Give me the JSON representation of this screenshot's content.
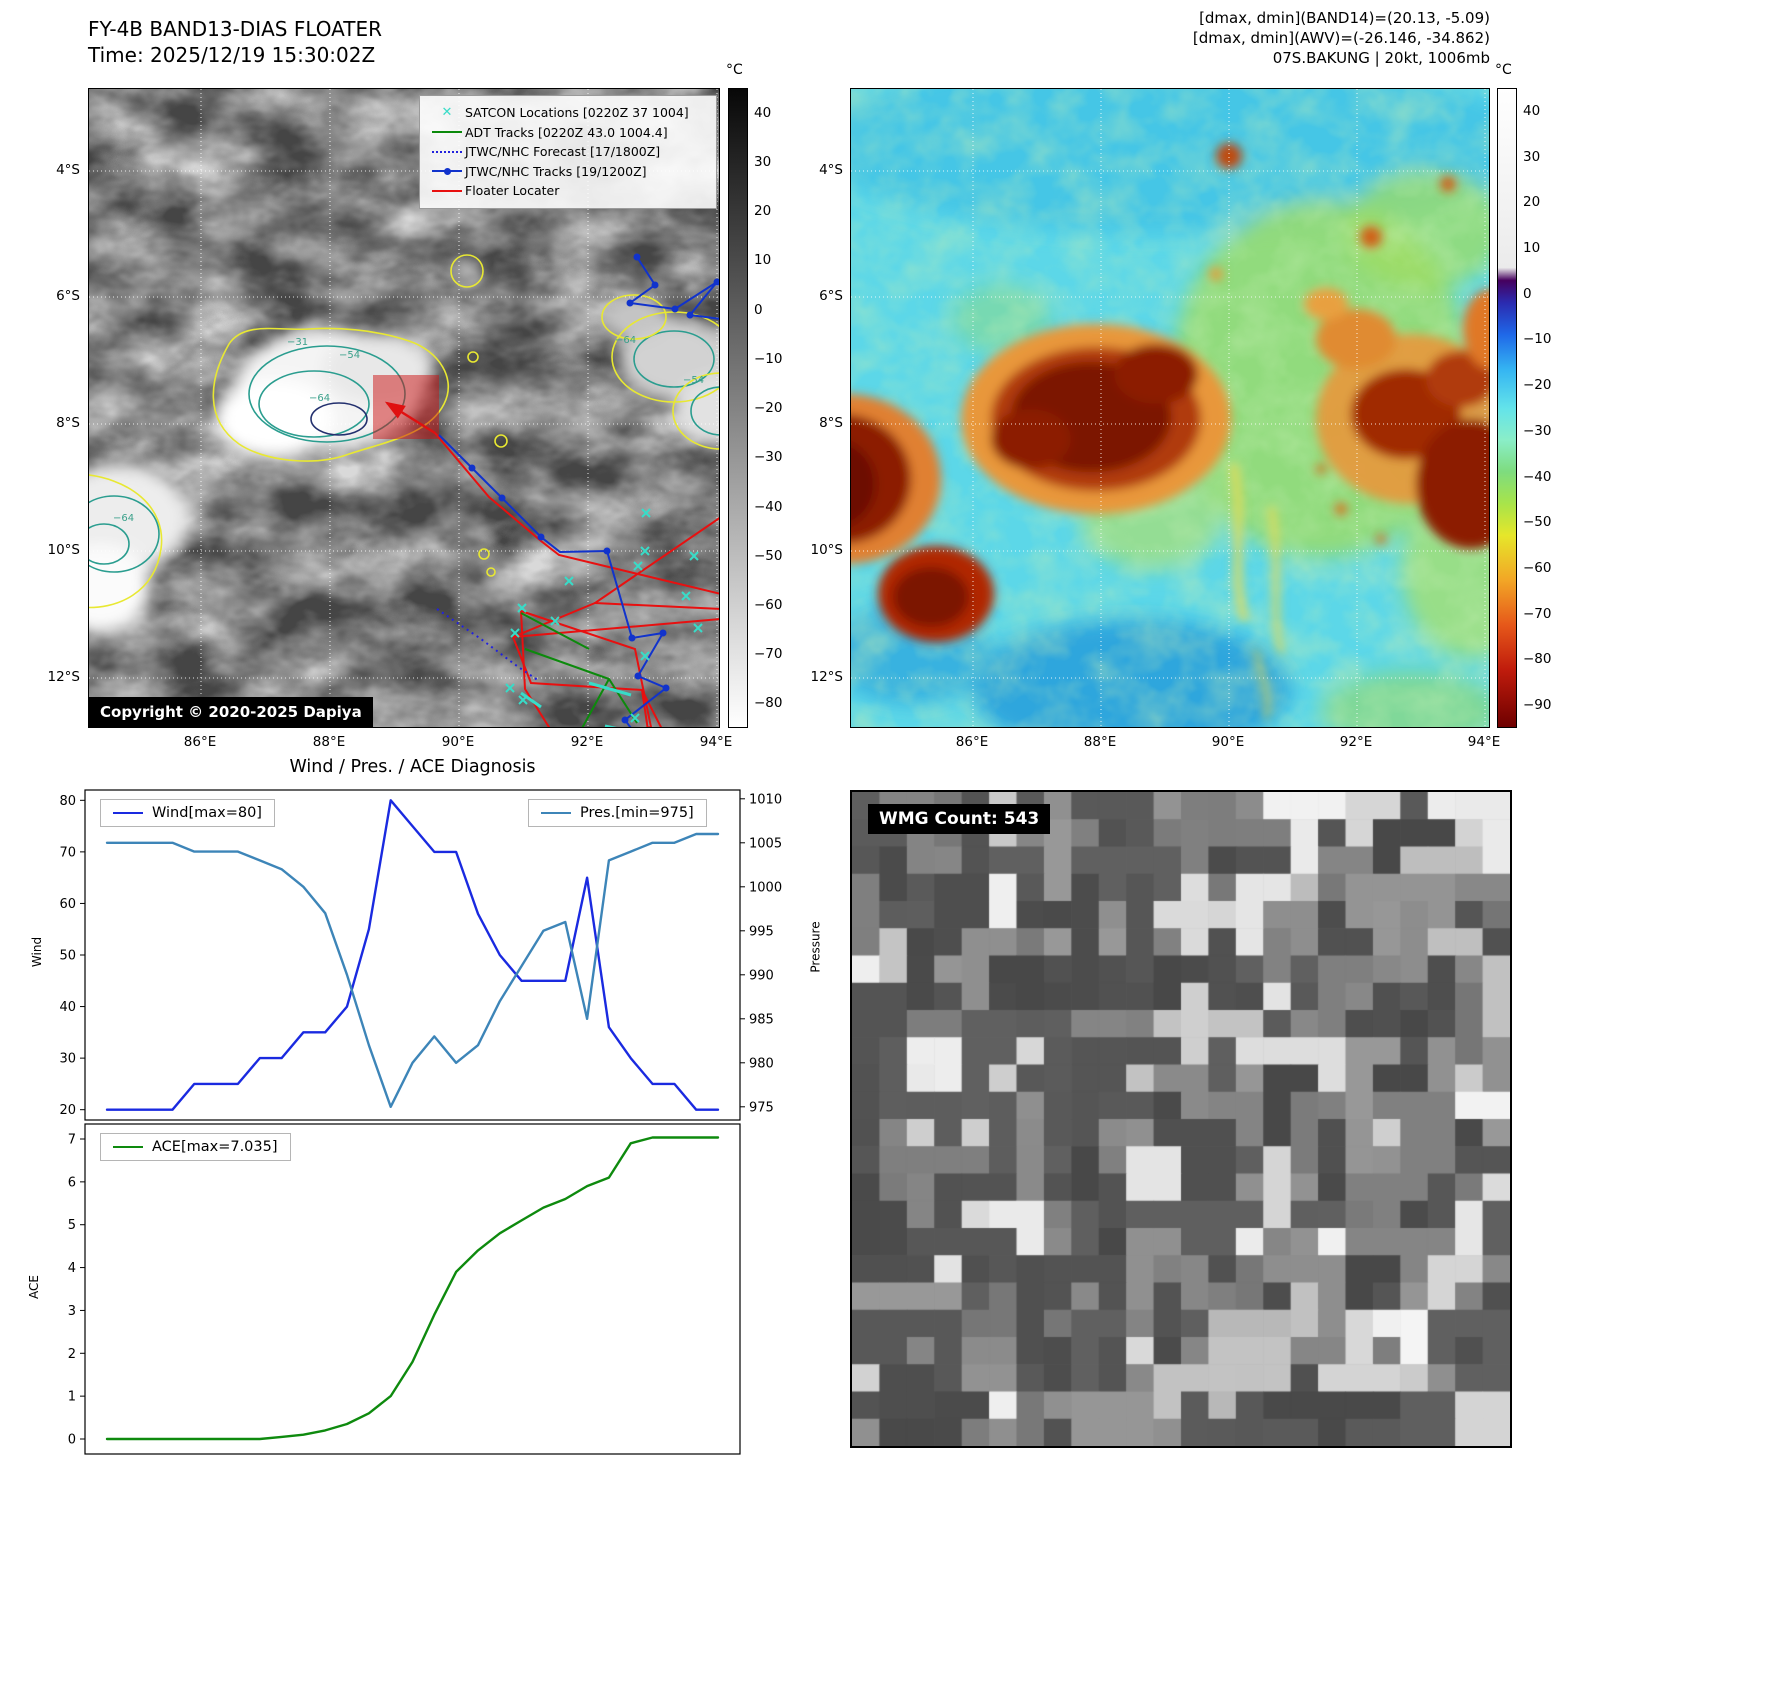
{
  "colors": {
    "wind_line": "#1a2ae0",
    "pressure_line": "#3d85b8",
    "ace_line": "#0e8a0e",
    "track_blue": "#1133cc",
    "floater_red": "#e81010",
    "adt_green": "#0c8a0c",
    "satcon_cyan": "#38dcc8",
    "contour_yellow": "#e8e832",
    "contour_teal": "#2a9d8f"
  },
  "ir_panel": {
    "title": "FY-4B BAND13-DIAS FLOATER",
    "subtitle": "Time: 2025/12/19 15:30:02Z",
    "legend": {
      "satcon": "SATCON Locations [0220Z 37 1004]",
      "adt": "ADT Tracks [0220Z 43.0 1004.4]",
      "forecast": "JTWC/NHC Forecast [17/1800Z]",
      "tracks": "JTWC/NHC Tracks [19/1200Z]",
      "floater": "Floater Locater"
    },
    "copyright": "Copyright © 2020-2025 Dapiya",
    "colorbar_unit": "°C",
    "colorbar_ticks": [
      "40",
      "30",
      "20",
      "10",
      "0",
      "−10",
      "−20",
      "−30",
      "−40",
      "−50",
      "−60",
      "−70",
      "−80"
    ],
    "x_ticks": [
      "86°E",
      "88°E",
      "90°E",
      "92°E",
      "94°E"
    ],
    "y_ticks": [
      "4°S",
      "6°S",
      "8°S",
      "10°S",
      "12°S"
    ],
    "contour_labels": [
      "−31",
      "−54",
      "−64",
      "−64",
      "−54",
      "−64"
    ]
  },
  "awv_panel": {
    "header_line1": "[dmax, dmin](BAND14)=(20.13, -5.09)",
    "header_line2": "[dmax, dmin](AWV)=(-26.146, -34.862)",
    "header_line3": "07S.BAKUNG | 20kt, 1006mb",
    "colorbar_unit": "°C",
    "colorbar_ticks": [
      "40",
      "30",
      "20",
      "10",
      "0",
      "−10",
      "−20",
      "−30",
      "−40",
      "−50",
      "−60",
      "−70",
      "−80",
      "−90"
    ],
    "x_ticks": [
      "86°E",
      "88°E",
      "90°E",
      "92°E",
      "94°E"
    ],
    "y_ticks": [
      "4°S",
      "6°S",
      "8°S",
      "10°S",
      "12°S"
    ]
  },
  "diagnosis": {
    "title": "Wind / Pres. / ACE Diagnosis"
  },
  "wmg_panel": {
    "label": "WMG Count: 543"
  },
  "chart_data": [
    {
      "type": "line",
      "title": "Wind / Pres. / ACE Diagnosis",
      "grid": false,
      "axes": {
        "left": {
          "label": "Wind",
          "min": 18,
          "max": 82,
          "ticks": [
            20,
            30,
            40,
            50,
            60,
            70,
            80
          ]
        },
        "right": {
          "label": "Pressure",
          "min": 973.5,
          "max": 1011,
          "ticks": [
            975,
            980,
            985,
            990,
            995,
            1000,
            1005,
            1010
          ]
        }
      },
      "series": [
        {
          "name": "Wind[max=80]",
          "axis": "left",
          "color": "#1a2ae0",
          "values": [
            20,
            20,
            20,
            20,
            25,
            25,
            25,
            30,
            30,
            35,
            35,
            40,
            55,
            80,
            75,
            70,
            70,
            58,
            50,
            45,
            45,
            45,
            65,
            36,
            30,
            25,
            25,
            20,
            20
          ]
        },
        {
          "name": "Pres.[min=975]",
          "axis": "right",
          "color": "#3d85b8",
          "values": [
            1005,
            1005,
            1005,
            1005,
            1004,
            1004,
            1004,
            1003,
            1002,
            1000,
            997,
            990,
            982,
            975,
            980,
            983,
            980,
            982,
            987,
            991,
            995,
            996,
            985,
            1003,
            1004,
            1005,
            1005,
            1006,
            1006
          ]
        }
      ]
    },
    {
      "type": "line",
      "title": "",
      "grid": false,
      "axes": {
        "left": {
          "label": "ACE",
          "min": -0.35,
          "max": 7.35,
          "ticks": [
            0,
            1,
            2,
            3,
            4,
            5,
            6,
            7
          ]
        }
      },
      "series": [
        {
          "name": "ACE[max=7.035]",
          "axis": "left",
          "color": "#0e8a0e",
          "values": [
            0,
            0,
            0,
            0,
            0,
            0,
            0,
            0,
            0.05,
            0.1,
            0.2,
            0.35,
            0.6,
            1.0,
            1.8,
            2.9,
            3.9,
            4.4,
            4.8,
            5.1,
            5.4,
            5.6,
            5.9,
            6.1,
            6.9,
            7.035,
            7.035,
            7.035,
            7.035
          ]
        }
      ]
    }
  ]
}
